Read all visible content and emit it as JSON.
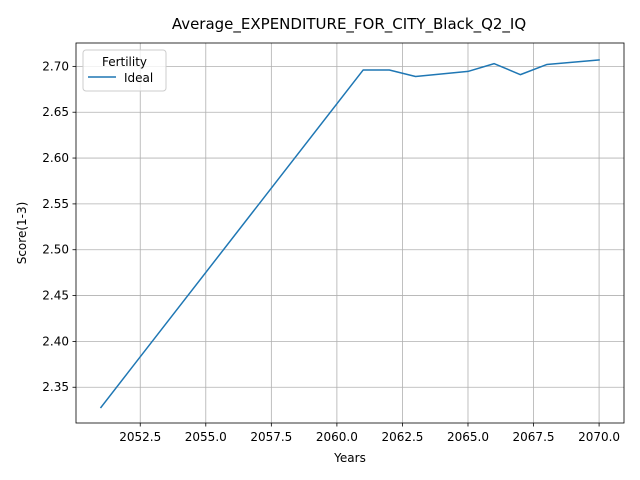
{
  "chart_data": {
    "type": "line",
    "title": "Average_EXPENDITURE_FOR_CITY_Black_Q2_IQ",
    "xlabel": "Years",
    "ylabel": "Score(1-3)",
    "xlim": [
      2050.05,
      2070.95
    ],
    "ylim": [
      2.311,
      2.7255
    ],
    "xticks": [
      2052.5,
      2055.0,
      2057.5,
      2060.0,
      2062.5,
      2065.0,
      2067.5,
      2070.0
    ],
    "xtick_labels": [
      "2052.5",
      "2055.0",
      "2057.5",
      "2060.0",
      "2062.5",
      "2065.0",
      "2067.5",
      "2070.0"
    ],
    "yticks": [
      2.35,
      2.4,
      2.45,
      2.5,
      2.55,
      2.6,
      2.65,
      2.7
    ],
    "ytick_labels": [
      "2.35",
      "2.40",
      "2.45",
      "2.50",
      "2.55",
      "2.60",
      "2.65",
      "2.70"
    ],
    "grid": true,
    "legend": {
      "title": "Fertility",
      "position": "top-left"
    },
    "series": [
      {
        "name": "Ideal",
        "color": "#1f77b4",
        "x": [
          2051,
          2061,
          2062,
          2063,
          2065,
          2066,
          2067,
          2068,
          2070
        ],
        "y": [
          2.328,
          2.696,
          2.696,
          2.689,
          2.6945,
          2.703,
          2.691,
          2.702,
          2.707
        ]
      }
    ]
  }
}
